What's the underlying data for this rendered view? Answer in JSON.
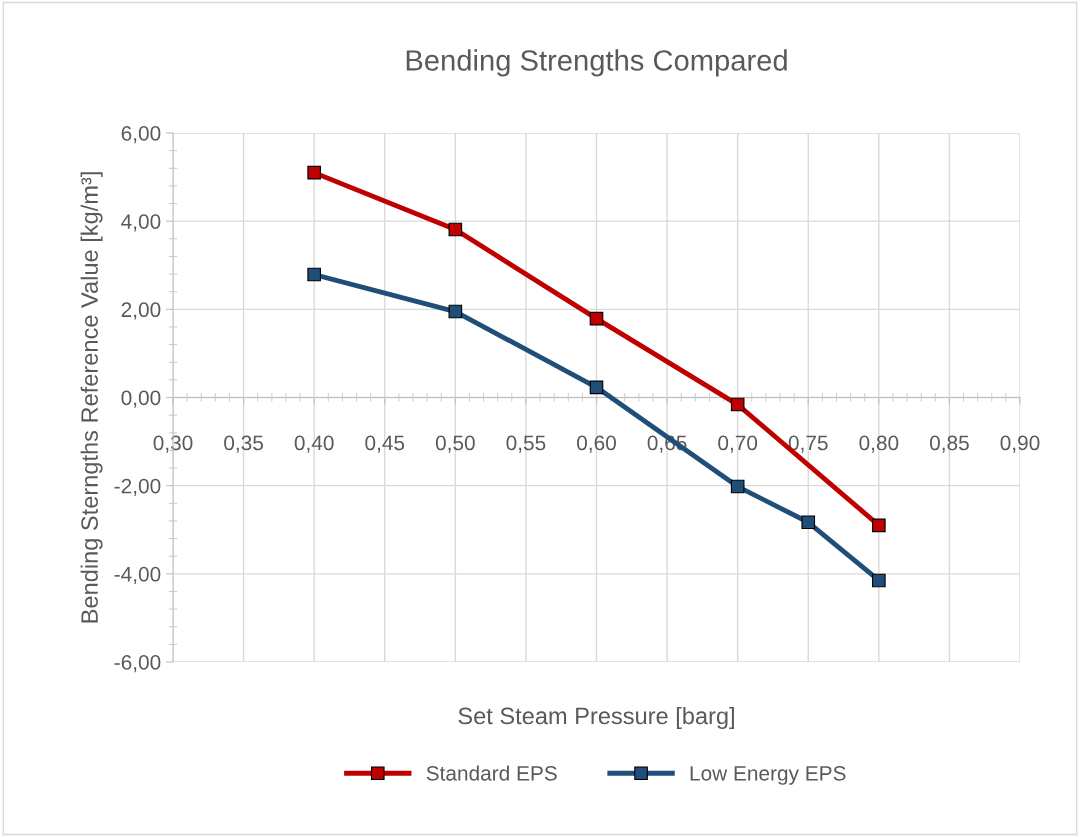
{
  "chart_data": {
    "type": "line",
    "title": "Bending Strengths Compared",
    "xlabel": "Set Steam Pressure [barg]",
    "ylabel": "Bending Sterngths Reference Value [kg/m³]",
    "series": [
      {
        "name": "Standard EPS",
        "color": "#c00000",
        "x": [
          0.4,
          0.5,
          0.6,
          0.7,
          0.8
        ],
        "values": [
          5.1,
          3.81,
          1.79,
          -0.16,
          -2.9
        ]
      },
      {
        "name": "Low Energy EPS",
        "color": "#1f4e79",
        "x": [
          0.4,
          0.5,
          0.6,
          0.7,
          0.75,
          0.8
        ],
        "values": [
          2.79,
          1.95,
          0.23,
          -2.02,
          -2.83,
          -4.15
        ]
      }
    ],
    "xlim": [
      0.3,
      0.9
    ],
    "xticks": [
      {
        "value": 0.3,
        "label": "0,30"
      },
      {
        "value": 0.35,
        "label": "0,35"
      },
      {
        "value": 0.4,
        "label": "0,40"
      },
      {
        "value": 0.45,
        "label": "0,45"
      },
      {
        "value": 0.5,
        "label": "0,50"
      },
      {
        "value": 0.55,
        "label": "0,55"
      },
      {
        "value": 0.6,
        "label": "0,60"
      },
      {
        "value": 0.65,
        "label": "0,65"
      },
      {
        "value": 0.7,
        "label": "0,70"
      },
      {
        "value": 0.75,
        "label": "0,75"
      },
      {
        "value": 0.8,
        "label": "0,80"
      },
      {
        "value": 0.85,
        "label": "0,85"
      },
      {
        "value": 0.9,
        "label": "0,90"
      }
    ],
    "ylim": [
      -6,
      6
    ],
    "yticks": [
      {
        "value": -6,
        "label": "-6,00"
      },
      {
        "value": -4,
        "label": "-4,00"
      },
      {
        "value": -2,
        "label": "-2,00"
      },
      {
        "value": 0,
        "label": "0,00"
      },
      {
        "value": 2,
        "label": "2,00"
      },
      {
        "value": 4,
        "label": "4,00"
      },
      {
        "value": 6,
        "label": "6,00"
      }
    ],
    "grid": true,
    "legend": "bottom",
    "marker": "square",
    "line_style": "solid"
  }
}
